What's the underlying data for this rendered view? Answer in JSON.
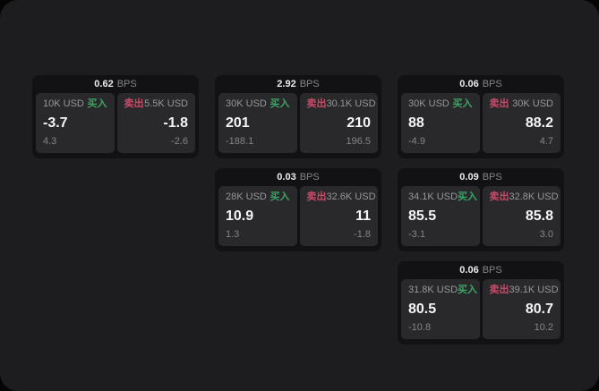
{
  "labels": {
    "buy": "买入",
    "sell": "卖出",
    "bps_unit": "BPS"
  },
  "colors": {
    "buy_green": "#3da465",
    "sell_red": "#c94b69",
    "window_bg": "#1d1d1f",
    "card_bg": "#121214",
    "panel_bg": "#29292b"
  },
  "cards": [
    {
      "bps": "0.62",
      "buy": {
        "amount": "10K USD",
        "value": "-3.7",
        "delta": "4.3"
      },
      "sell": {
        "amount": "5.5K USD",
        "value": "-1.8",
        "delta": "-2.6"
      }
    },
    {
      "bps": "2.92",
      "buy": {
        "amount": "30K USD",
        "value": "201",
        "delta": "-188.1"
      },
      "sell": {
        "amount": "30.1K USD",
        "value": "210",
        "delta": "196.5"
      }
    },
    {
      "bps": "0.06",
      "buy": {
        "amount": "30K USD",
        "value": "88",
        "delta": "-4.9"
      },
      "sell": {
        "amount": "30K USD",
        "value": "88.2",
        "delta": "4.7"
      }
    },
    {
      "bps": "0.03",
      "buy": {
        "amount": "28K USD",
        "value": "10.9",
        "delta": "1.3"
      },
      "sell": {
        "amount": "32.6K USD",
        "value": "11",
        "delta": "-1.8"
      }
    },
    {
      "bps": "0.09",
      "buy": {
        "amount": "34.1K USD",
        "value": "85.5",
        "delta": "-3.1"
      },
      "sell": {
        "amount": "32.8K USD",
        "value": "85.8",
        "delta": "3.0"
      }
    },
    {
      "bps": "0.06",
      "buy": {
        "amount": "31.8K USD",
        "value": "80.5",
        "delta": "-10.8"
      },
      "sell": {
        "amount": "39.1K USD",
        "value": "80.7",
        "delta": "10.2"
      }
    }
  ]
}
